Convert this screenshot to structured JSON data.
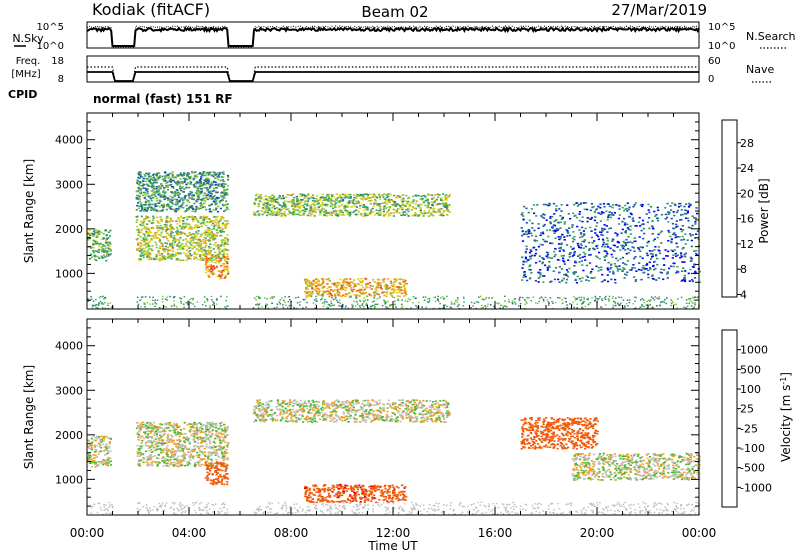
{
  "header": {
    "site": "Kodiak (fitACF)",
    "beam": "Beam 02",
    "date": "27/Mar/2019"
  },
  "top_panels": {
    "nsky": {
      "label": "N.Sky",
      "right_label": "N.Search",
      "left_ticks": [
        "10^5",
        "10^0"
      ],
      "right_ticks": [
        "10^5",
        "10^0"
      ],
      "gaps": [
        [
          1.0,
          1.9
        ],
        [
          5.5,
          6.5
        ]
      ]
    },
    "freq": {
      "label_line1": "Freq.",
      "label_line2": "[MHz]",
      "right_label": "Nave",
      "left_ticks": [
        "18",
        "8"
      ],
      "right_ticks": [
        "60",
        "0"
      ]
    },
    "cpid": {
      "label": "CPID",
      "value": "normal (fast) 151 RF"
    }
  },
  "power_colorbar": {
    "title": "Power [dB]",
    "ticks": [
      "28",
      "24",
      "20",
      "16",
      "12",
      "8",
      "4"
    ],
    "colors": [
      "#0000ff",
      "#1a4fb0",
      "#2f7f6f",
      "#39a36a",
      "#86c23d",
      "#dcd51f",
      "#f7a81c",
      "#ee6b18",
      "#e53a13",
      "#e0000f"
    ]
  },
  "velocity_colorbar": {
    "title_main": "Velocity",
    "title_unit": "[m s",
    "title_exp": "-1",
    "title_close": "]",
    "ticks": [
      "1000",
      "500",
      "100",
      "25",
      "-25",
      "-100",
      "-500",
      "-1000"
    ],
    "colors": [
      "#e60000",
      "#f05a0a",
      "#f5a020",
      "#c0c0c0",
      "#c0c0c0",
      "#4cb830",
      "#2f7f6f",
      "#1e50b8",
      "#0000e0"
    ]
  },
  "chart_data": [
    {
      "type": "heatmap",
      "name": "Power [dB]",
      "ylabel": "Slant Range [km]",
      "xlabel": "Time UT",
      "xlim": [
        0,
        24
      ],
      "ylim": [
        200,
        4600
      ],
      "x_ticks": [
        "00:00",
        "04:00",
        "08:00",
        "12:00",
        "16:00",
        "20:00",
        "00:00"
      ],
      "y_ticks": [
        1000,
        2000,
        3000,
        4000
      ],
      "regions": [
        {
          "t0": 0.0,
          "t1": 0.9,
          "r0": 1300,
          "r1": 2000,
          "value": 12
        },
        {
          "t0": 1.9,
          "t1": 5.5,
          "r0": 1300,
          "r1": 2300,
          "value": 16
        },
        {
          "t0": 1.9,
          "t1": 5.5,
          "r0": 2400,
          "r1": 3300,
          "value": 10
        },
        {
          "t0": 4.6,
          "t1": 5.5,
          "r0": 900,
          "r1": 1400,
          "value": 22
        },
        {
          "t0": 6.5,
          "t1": 14.2,
          "r0": 2300,
          "r1": 2800,
          "value": 14
        },
        {
          "t0": 8.5,
          "t1": 12.5,
          "r0": 500,
          "r1": 900,
          "value": 20
        },
        {
          "t0": 17.0,
          "t1": 24.0,
          "r0": 800,
          "r1": 2600,
          "value": 6
        }
      ]
    },
    {
      "type": "heatmap",
      "name": "Velocity",
      "ylabel": "Slant Range [km]",
      "xlabel": "Time UT",
      "xlim": [
        0,
        24
      ],
      "ylim": [
        200,
        4600
      ],
      "x_ticks": [
        "00:00",
        "04:00",
        "08:00",
        "12:00",
        "16:00",
        "20:00",
        "00:00"
      ],
      "y_ticks": [
        1000,
        2000,
        3000,
        4000
      ],
      "regions": [
        {
          "t0": 0.0,
          "t1": 0.9,
          "r0": 1300,
          "r1": 2000,
          "value": 0
        },
        {
          "t0": 1.9,
          "t1": 5.5,
          "r0": 1300,
          "r1": 2300,
          "value": 0
        },
        {
          "t0": 4.6,
          "t1": 5.5,
          "r0": 900,
          "r1": 1400,
          "value": -300
        },
        {
          "t0": 6.5,
          "t1": 14.2,
          "r0": 2300,
          "r1": 2800,
          "value": 0
        },
        {
          "t0": 8.5,
          "t1": 12.5,
          "r0": 500,
          "r1": 900,
          "value": -400
        },
        {
          "t0": 17.0,
          "t1": 20.0,
          "r0": 1700,
          "r1": 2400,
          "value": -200
        },
        {
          "t0": 19.0,
          "t1": 24.0,
          "r0": 1000,
          "r1": 1600,
          "value": 0
        }
      ]
    }
  ]
}
